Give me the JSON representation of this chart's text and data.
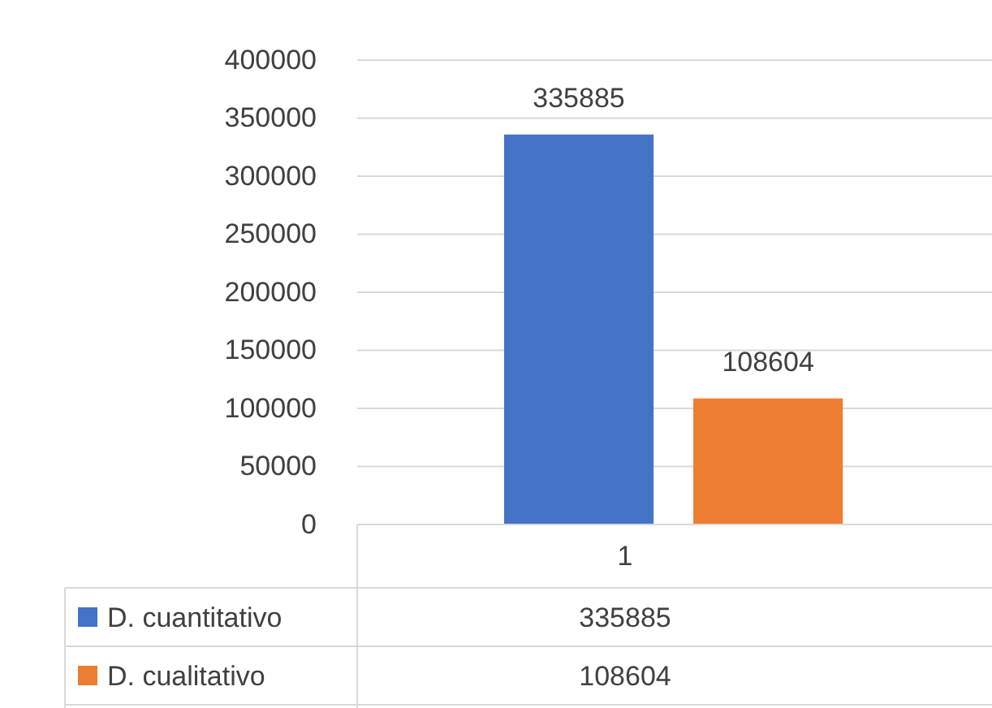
{
  "chart_data": {
    "type": "bar",
    "categories": [
      "1"
    ],
    "series": [
      {
        "name": "D. cuantitativo",
        "color": "#4472c4",
        "values": [
          335885
        ],
        "value_labels": [
          "335885"
        ]
      },
      {
        "name": "D. cualitativo",
        "color": "#ed7d31",
        "values": [
          108604
        ],
        "value_labels": [
          "108604"
        ]
      }
    ],
    "ylim": [
      0,
      400000
    ],
    "yticks": [
      0,
      50000,
      100000,
      150000,
      200000,
      250000,
      300000,
      350000,
      400000
    ],
    "grid": "y",
    "legend": "bottom",
    "annotations": [
      "335885",
      "108604"
    ]
  }
}
